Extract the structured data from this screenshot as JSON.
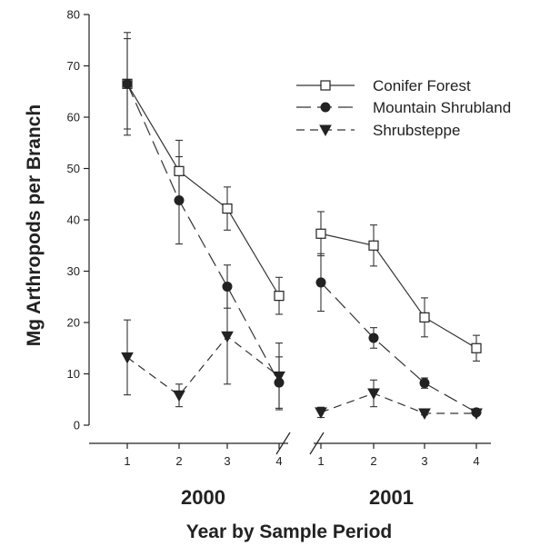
{
  "chart_data": {
    "type": "line",
    "xlabel": "Year by Sample Period",
    "ylabel": "Mg Arthropods per Branch",
    "ylim": [
      0,
      80
    ],
    "yticks": [
      "0",
      "10",
      "20",
      "30",
      "40",
      "50",
      "60",
      "70",
      "80"
    ],
    "panels": [
      {
        "year": "2000",
        "periods": [
          "1",
          "2",
          "3",
          "4"
        ]
      },
      {
        "year": "2001",
        "periods": [
          "1",
          "2",
          "3",
          "4"
        ]
      }
    ],
    "legend_position": "top-right",
    "series": [
      {
        "name": "Conifer Forest",
        "marker": "square-open",
        "line": "solid",
        "values": [
          [
            66.5,
            49.5,
            42.2,
            25.2
          ],
          [
            37.3,
            35.0,
            21.0,
            15.0
          ]
        ],
        "errors": [
          [
            10.0,
            6.0,
            4.2,
            3.6
          ],
          [
            4.3,
            4.0,
            3.8,
            2.5
          ]
        ]
      },
      {
        "name": "Mountain Shrubland",
        "marker": "circle-filled",
        "line": "long-dash",
        "values": [
          [
            66.5,
            43.8,
            27.0,
            8.3
          ],
          [
            27.8,
            17.0,
            8.2,
            2.5
          ]
        ],
        "errors": [
          [
            8.8,
            8.5,
            4.2,
            5.0
          ],
          [
            5.6,
            2.0,
            1.0,
            0.5
          ]
        ]
      },
      {
        "name": "Shrubsteppe",
        "marker": "triangle-down-filled",
        "line": "short-dash",
        "values": [
          [
            13.2,
            5.8,
            17.3,
            9.5
          ],
          [
            2.5,
            6.2,
            2.3,
            2.3
          ]
        ],
        "errors": [
          [
            7.3,
            2.2,
            9.3,
            6.5
          ],
          [
            1.0,
            2.6,
            0.3,
            0.3
          ]
        ]
      }
    ]
  }
}
